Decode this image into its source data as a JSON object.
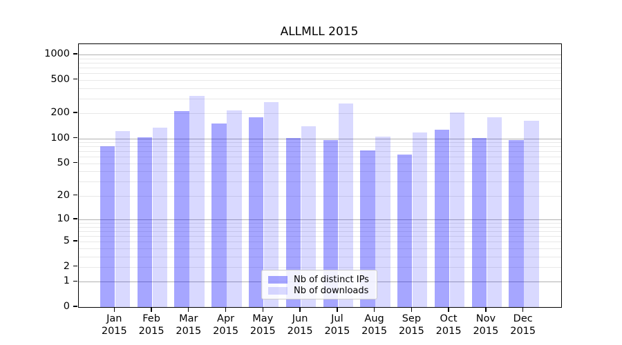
{
  "chart_data": {
    "type": "bar",
    "title": "ALLMLL 2015",
    "categories": [
      "Jan",
      "Feb",
      "Mar",
      "Apr",
      "May",
      "Jun",
      "Jul",
      "Aug",
      "Sep",
      "Oct",
      "Nov",
      "Dec"
    ],
    "x_tick_second_line": "2015",
    "series": [
      {
        "name": "Nb of distinct IPs",
        "color": "rgba(0,0,255,0.35)",
        "values": [
          80,
          104,
          212,
          151,
          178,
          101,
          96,
          72,
          64,
          128,
          102,
          95
        ]
      },
      {
        "name": "Nb of downloads",
        "color": "rgba(0,0,255,0.15)",
        "values": [
          122,
          135,
          320,
          216,
          273,
          140,
          262,
          105,
          117,
          203,
          180,
          163
        ]
      }
    ],
    "y_axis": {
      "scale": "log1p",
      "tick_values": [
        0,
        1,
        2,
        5,
        10,
        20,
        50,
        100,
        200,
        500,
        1000
      ],
      "major_grid_values": [
        1,
        10,
        100,
        1000
      ],
      "minor_grid_values": [
        2,
        3,
        4,
        5,
        6,
        7,
        8,
        9,
        20,
        30,
        40,
        50,
        60,
        70,
        80,
        90,
        200,
        300,
        400,
        500,
        600,
        700,
        800,
        900
      ],
      "ylim": [
        0,
        1330
      ]
    },
    "legend_position": "lower center",
    "grid": true
  },
  "colors": {
    "major_grid": "#b0b0b0",
    "minor_grid": "#e8e8e8",
    "axis": "#000000",
    "background": "#ffffff"
  }
}
